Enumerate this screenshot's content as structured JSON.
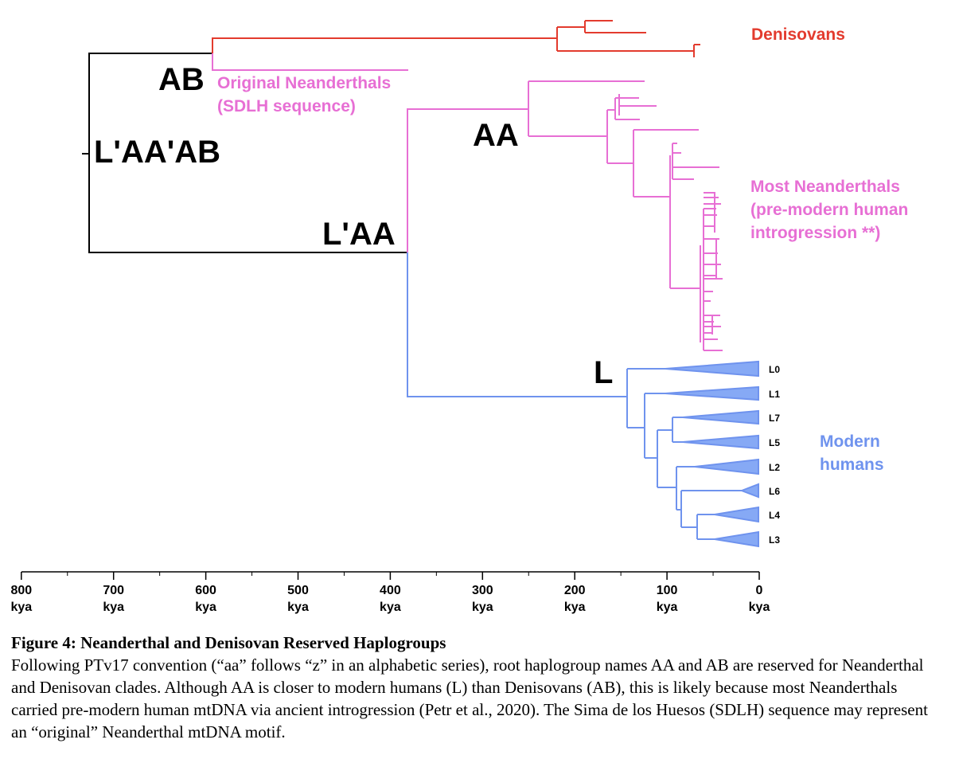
{
  "colors": {
    "root": "#000000",
    "denisovan": "#e33b2e",
    "neanderthal": "#e76fd4",
    "modern": "#6f93ee",
    "modern_fill": "#86a9f5"
  },
  "node_labels": {
    "root": "L'AA'AB",
    "ab": "AB",
    "laa": "L'AA",
    "aa": "AA",
    "l": "L"
  },
  "clade_labels": {
    "denisovans": [
      "Denisovans"
    ],
    "original_neanderthals": [
      "Original Neanderthals",
      "(SDLH sequence)"
    ],
    "most_neanderthals": [
      "Most Neanderthals",
      "(pre-modern human",
      "introgression **)"
    ],
    "modern_humans": [
      "Modern",
      "humans"
    ]
  },
  "haplogroups": [
    "L0",
    "L1",
    "L7",
    "L5",
    "L2",
    "L6",
    "L4",
    "L3"
  ],
  "axis": {
    "ticks": [
      {
        "value": 800,
        "label": "800",
        "unit": "kya"
      },
      {
        "value": 700,
        "label": "700",
        "unit": "kya"
      },
      {
        "value": 600,
        "label": "600",
        "unit": "kya"
      },
      {
        "value": 500,
        "label": "500",
        "unit": "kya"
      },
      {
        "value": 400,
        "label": "400",
        "unit": "kya"
      },
      {
        "value": 300,
        "label": "300",
        "unit": "kya"
      },
      {
        "value": 200,
        "label": "200",
        "unit": "kya"
      },
      {
        "value": 100,
        "label": "100",
        "unit": "kya"
      },
      {
        "value": 0,
        "label": "0",
        "unit": "kya"
      }
    ]
  },
  "caption": {
    "title": "Figure 4: Neanderthal and Denisovan Reserved Haplogroups",
    "body": "Following PTv17 convention (“aa” follows “z” in an alphabetic series), root haplogroup names AA and AB are reserved for Neanderthal and Denisovan clades. Although AA is closer to modern humans (L) than Denisovans (AB), this is likely because most Neanderthals carried pre-modern human mtDNA via ancient introgression (Petr et al., 2020). The Sima de los Huesos (SDLH) sequence may represent an “original” Neanderthal mtDNA motif."
  }
}
